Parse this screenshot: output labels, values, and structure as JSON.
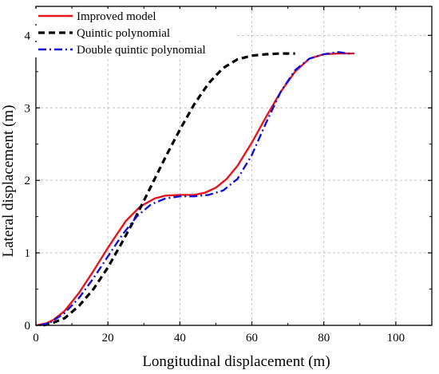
{
  "chart_data": {
    "type": "line",
    "xlabel": "Longitudinal displacement (m)",
    "ylabel": "Lateral displacement (m)",
    "xlim": [
      0,
      110
    ],
    "ylim": [
      0,
      4.4
    ],
    "xticks": [
      0,
      20,
      40,
      60,
      80,
      100
    ],
    "yticks": [
      0,
      1,
      2,
      3,
      4
    ],
    "grid": true,
    "legend_position": "top-left",
    "series": [
      {
        "name": "Improved model",
        "color": "#e8141c",
        "dash": "solid",
        "x": [
          0,
          3,
          5,
          8,
          12,
          16,
          20,
          25,
          29,
          33,
          36,
          40,
          44,
          47,
          50,
          53,
          56,
          60,
          64,
          68,
          72,
          76,
          80,
          84,
          88.5
        ],
        "y": [
          0,
          0.03,
          0.08,
          0.2,
          0.45,
          0.75,
          1.07,
          1.44,
          1.64,
          1.75,
          1.79,
          1.8,
          1.8,
          1.83,
          1.9,
          2.02,
          2.2,
          2.52,
          2.88,
          3.22,
          3.5,
          3.68,
          3.74,
          3.75,
          3.75
        ]
      },
      {
        "name": "Quintic polynomial",
        "color": "#000000",
        "dash": "dashed",
        "x": [
          2,
          5,
          8,
          12,
          16,
          20,
          24,
          28,
          32,
          36,
          40,
          44,
          48,
          52,
          56,
          60,
          64,
          68,
          72
        ],
        "y": [
          0,
          0.04,
          0.1,
          0.27,
          0.5,
          0.8,
          1.15,
          1.52,
          1.92,
          2.32,
          2.7,
          3.05,
          3.34,
          3.55,
          3.67,
          3.72,
          3.74,
          3.75,
          3.75
        ]
      },
      {
        "name": "Double quintic polynomial",
        "color": "#1010d8",
        "dash": "dashdot",
        "x": [
          1,
          4,
          8,
          12,
          16,
          20,
          24,
          28,
          32,
          36,
          40,
          44,
          48,
          52,
          56,
          60,
          64,
          68,
          72,
          76,
          80,
          84,
          88
        ],
        "y": [
          0,
          0.04,
          0.17,
          0.38,
          0.65,
          0.95,
          1.25,
          1.5,
          1.67,
          1.75,
          1.78,
          1.78,
          1.8,
          1.86,
          2.02,
          2.35,
          2.8,
          3.22,
          3.52,
          3.68,
          3.74,
          3.77,
          3.74
        ]
      }
    ]
  }
}
